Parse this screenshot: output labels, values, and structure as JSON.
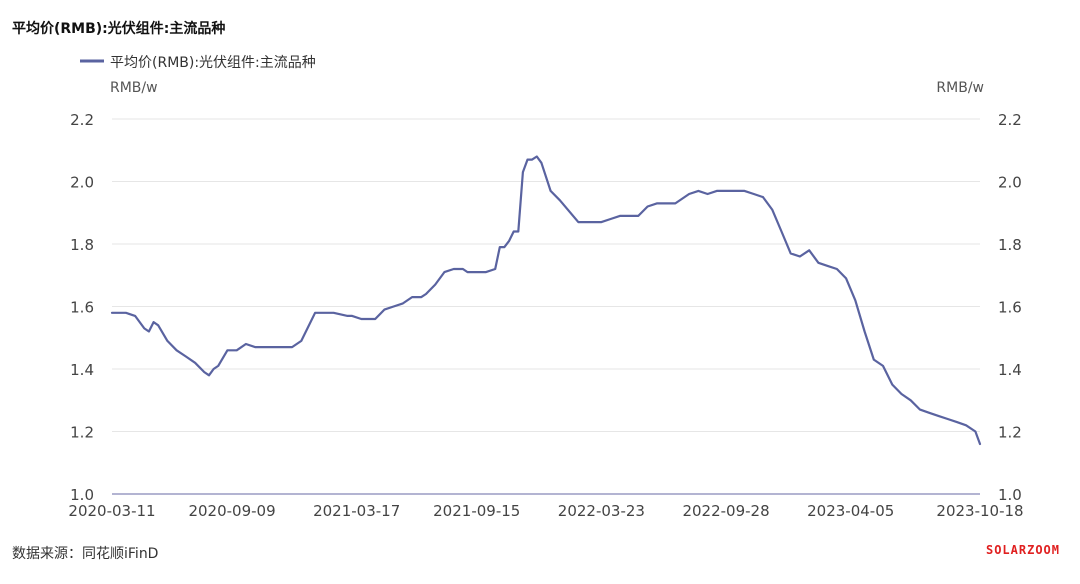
{
  "title": "平均价(RMB):光伏组件:主流品种",
  "source": "数据来源：同花顺iFinD",
  "brand": "SOLARZOOM",
  "chart_data": {
    "type": "line",
    "title": "平均价(RMB):光伏组件:主流品种",
    "ylabel_left": "RMB/w",
    "ylabel_right": "RMB/w",
    "ylim": [
      1.0,
      2.2
    ],
    "yticks": [
      "1.0",
      "1.2",
      "1.4",
      "1.6",
      "1.8",
      "2.0",
      "2.2"
    ],
    "xticks": [
      "2020-03-11",
      "2020-09-09",
      "2021-03-17",
      "2021-09-15",
      "2022-03-23",
      "2022-09-28",
      "2023-04-05",
      "2023-10-18"
    ],
    "grid": true,
    "legend_position": "top-left",
    "colors": {
      "line": "#5a63a0",
      "grid": "#e6e6e6",
      "axis": "#9a9cc4",
      "brand": "#e02020"
    },
    "series": [
      {
        "name": "平均价(RMB):光伏组件:主流品种",
        "x": [
          "2020-03-11",
          "2020-04-01",
          "2020-04-15",
          "2020-04-29",
          "2020-05-06",
          "2020-05-13",
          "2020-05-20",
          "2020-06-03",
          "2020-06-17",
          "2020-07-01",
          "2020-07-15",
          "2020-07-29",
          "2020-08-05",
          "2020-08-12",
          "2020-08-19",
          "2020-09-02",
          "2020-09-16",
          "2020-09-30",
          "2020-10-14",
          "2020-11-04",
          "2020-11-25",
          "2020-12-09",
          "2020-12-16",
          "2020-12-23",
          "2021-01-13",
          "2021-01-27",
          "2021-02-10",
          "2021-03-03",
          "2021-03-10",
          "2021-03-24",
          "2021-04-07",
          "2021-04-14",
          "2021-04-28",
          "2021-05-12",
          "2021-05-26",
          "2021-06-09",
          "2021-06-23",
          "2021-06-30",
          "2021-07-14",
          "2021-07-28",
          "2021-08-11",
          "2021-08-18",
          "2021-08-25",
          "2021-09-01",
          "2021-09-15",
          "2021-09-22",
          "2021-09-29",
          "2021-10-13",
          "2021-10-20",
          "2021-10-27",
          "2021-11-03",
          "2021-11-10",
          "2021-11-17",
          "2021-11-24",
          "2021-12-01",
          "2021-12-08",
          "2021-12-15",
          "2021-12-22",
          "2022-01-05",
          "2022-01-19",
          "2022-02-16",
          "2022-03-02",
          "2022-03-16",
          "2022-03-23",
          "2022-04-06",
          "2022-04-20",
          "2022-05-04",
          "2022-05-18",
          "2022-06-01",
          "2022-06-15",
          "2022-06-29",
          "2022-07-13",
          "2022-07-27",
          "2022-08-03",
          "2022-08-17",
          "2022-08-31",
          "2022-09-14",
          "2022-09-28",
          "2022-10-12",
          "2022-10-26",
          "2022-11-09",
          "2022-11-23",
          "2022-12-07",
          "2022-12-21",
          "2023-01-04",
          "2023-01-18",
          "2023-02-01",
          "2023-02-15",
          "2023-03-01",
          "2023-03-15",
          "2023-03-29",
          "2023-04-12",
          "2023-04-26",
          "2023-05-10",
          "2023-05-24",
          "2023-06-07",
          "2023-06-21",
          "2023-07-05",
          "2023-07-19",
          "2023-08-02",
          "2023-08-16",
          "2023-08-30",
          "2023-09-13",
          "2023-09-27",
          "2023-10-11",
          "2023-10-18"
        ],
        "values": [
          1.58,
          1.58,
          1.57,
          1.53,
          1.52,
          1.55,
          1.54,
          1.49,
          1.46,
          1.44,
          1.42,
          1.39,
          1.38,
          1.4,
          1.41,
          1.46,
          1.46,
          1.48,
          1.47,
          1.47,
          1.47,
          1.47,
          1.48,
          1.49,
          1.58,
          1.58,
          1.58,
          1.57,
          1.57,
          1.56,
          1.56,
          1.56,
          1.59,
          1.6,
          1.61,
          1.63,
          1.63,
          1.64,
          1.67,
          1.71,
          1.72,
          1.72,
          1.72,
          1.71,
          1.71,
          1.71,
          1.71,
          1.72,
          1.79,
          1.79,
          1.81,
          1.84,
          1.84,
          2.03,
          2.07,
          2.07,
          2.08,
          2.06,
          1.97,
          1.94,
          1.87,
          1.87,
          1.87,
          1.87,
          1.88,
          1.89,
          1.89,
          1.89,
          1.92,
          1.93,
          1.93,
          1.93,
          1.95,
          1.96,
          1.97,
          1.96,
          1.97,
          1.97,
          1.97,
          1.97,
          1.96,
          1.95,
          1.91,
          1.84,
          1.77,
          1.76,
          1.78,
          1.74,
          1.73,
          1.72,
          1.69,
          1.62,
          1.52,
          1.43,
          1.41,
          1.35,
          1.32,
          1.3,
          1.27,
          1.26,
          1.25,
          1.24,
          1.23,
          1.22,
          1.2,
          1.16
        ]
      }
    ]
  }
}
